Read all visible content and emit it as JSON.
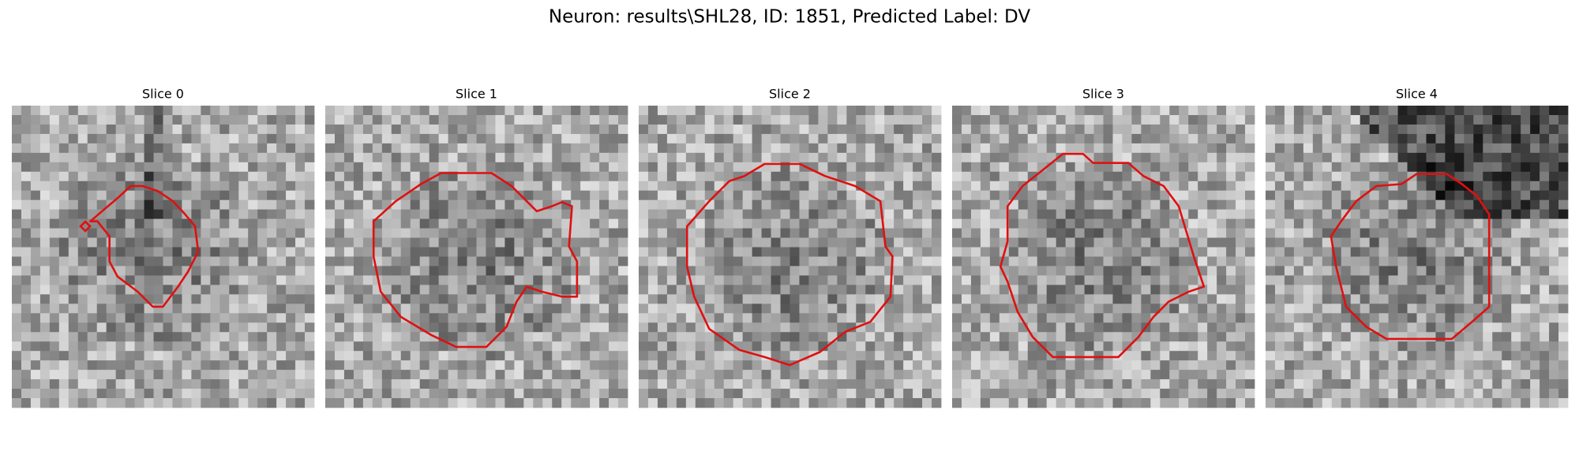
{
  "figure": {
    "title": "Neuron: results\\SHL28, ID: 1851, Predicted Label: DV",
    "panels": [
      {
        "title": "Slice 0"
      },
      {
        "title": "Slice 1"
      },
      {
        "title": "Slice 2"
      },
      {
        "title": "Slice 3"
      },
      {
        "title": "Slice 4"
      }
    ]
  }
}
